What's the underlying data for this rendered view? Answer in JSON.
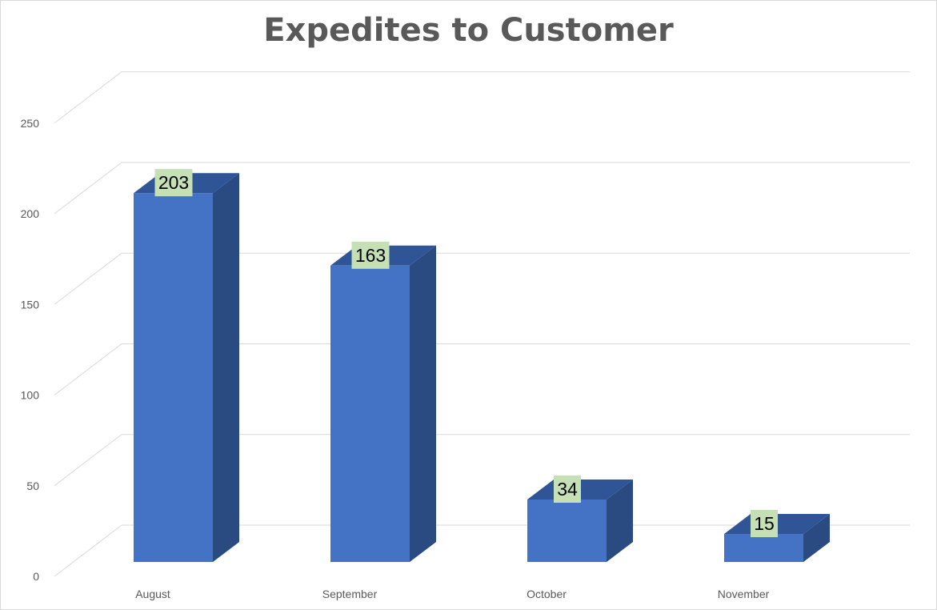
{
  "chart_data": {
    "type": "bar",
    "style": "3d-column",
    "title": "Expedites to Customer",
    "categories": [
      "August",
      "September",
      "October",
      "November"
    ],
    "values": [
      203,
      163,
      34,
      15
    ],
    "ylim": [
      0,
      250
    ],
    "yticks": [
      0,
      50,
      100,
      150,
      200,
      250
    ],
    "grid": true,
    "xlabel": "",
    "ylabel": "",
    "data_labels": true
  },
  "colors": {
    "bar_front": "#4472c4",
    "bar_top": "#2f5597",
    "bar_side": "#2a4a82",
    "label_bg": "#c5e0b4",
    "grid": "#d9d9d9",
    "axis_text": "#595959",
    "title": "#595959"
  }
}
